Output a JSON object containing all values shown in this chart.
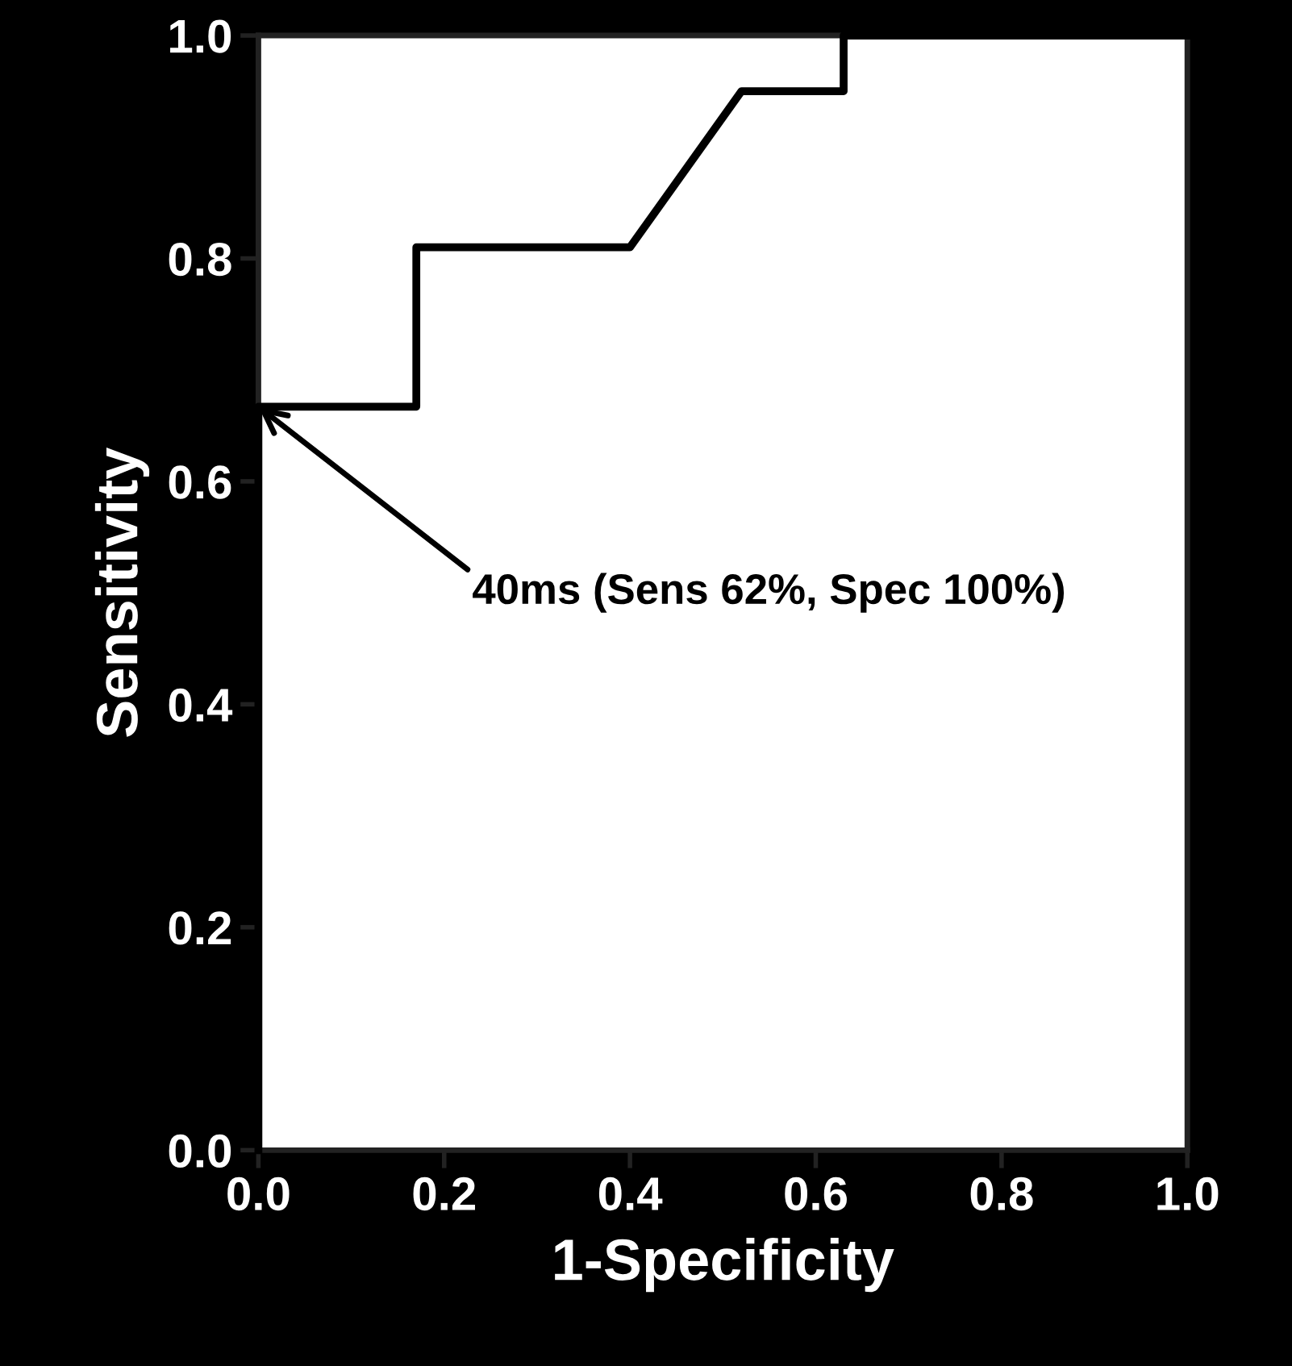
{
  "chart_data": {
    "type": "line",
    "xlabel": "1-Specificity",
    "ylabel": "Sensitivity",
    "x": [
      0,
      0,
      0.17,
      0.17,
      0.4,
      0.52,
      0.63,
      0.63,
      1
    ],
    "series": [
      {
        "color": "#000000",
        "values": [
          0,
          0.667,
          0.667,
          0.81,
          0.81,
          0.95,
          0.95,
          1,
          1
        ]
      }
    ],
    "xlim": [
      0,
      1
    ],
    "ylim": [
      0,
      1
    ],
    "xticks": [
      {
        "value": 0,
        "label": "0.0"
      },
      0.2,
      0.4,
      0.6,
      0.8,
      {
        "value": 1,
        "label": "1.0"
      }
    ],
    "yticks": [
      {
        "value": 0,
        "label": "0.0"
      },
      0.2,
      0.4,
      0.6,
      0.8,
      {
        "value": 1,
        "label": "1.0"
      }
    ],
    "annotations": [
      {
        "text": "40ms (Sens 62%, Spec 100%)",
        "x": 0,
        "y": 0.667
      }
    ],
    "grid": false,
    "legend": false,
    "marker": "none",
    "line_style": "solid"
  }
}
